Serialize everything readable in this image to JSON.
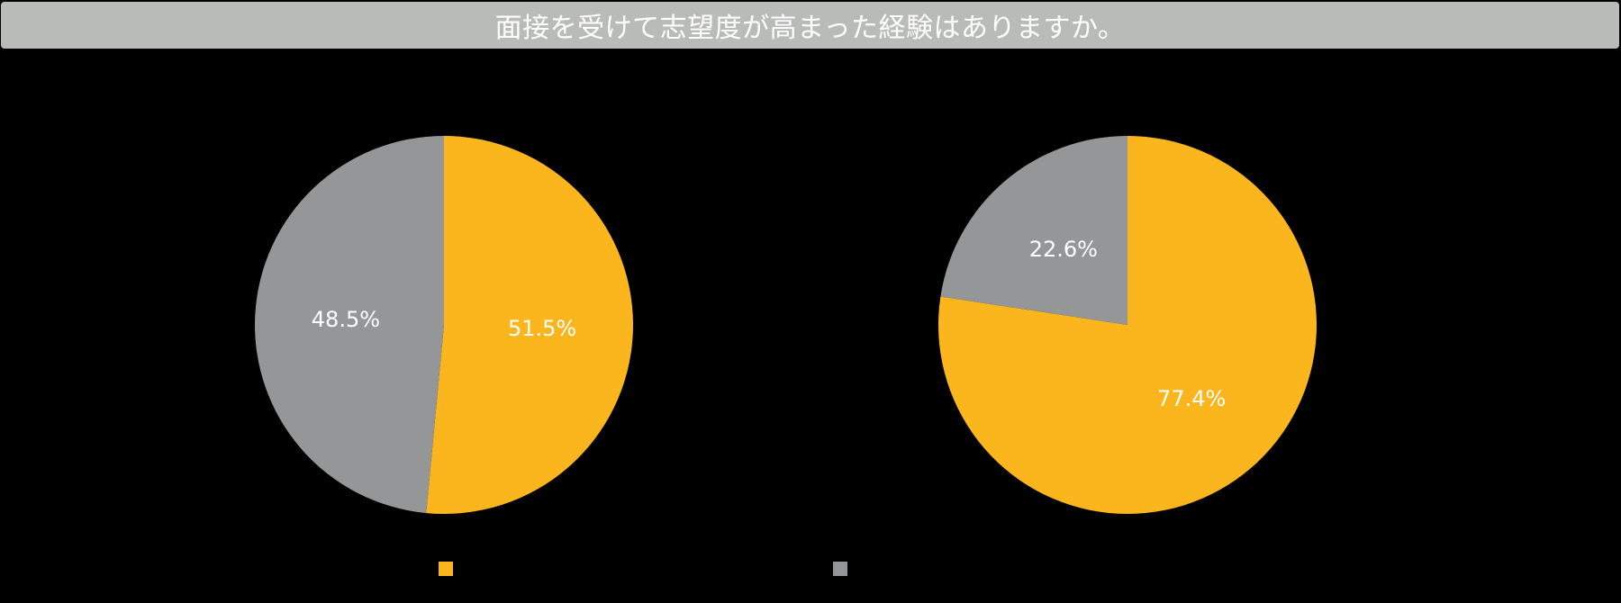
{
  "title": "面接を受けて志望度が高まった経験はありますか。",
  "colors": {
    "title_bar": "#b9bbb8",
    "background": "#000000",
    "label_text": "#ffffff"
  },
  "chart_data": [
    {
      "type": "pie",
      "start_angle": "12 o'clock",
      "direction": "clockwise",
      "slices": [
        {
          "value": 51.5,
          "label": "51.5%",
          "color": "#fbb51d"
        },
        {
          "value": 48.5,
          "label": "48.5%",
          "color": "#959697"
        }
      ]
    },
    {
      "type": "pie",
      "start_angle": "12 o'clock",
      "direction": "clockwise",
      "slices": [
        {
          "value": 77.4,
          "label": "77.4%",
          "color": "#fbb51d"
        },
        {
          "value": 22.6,
          "label": "22.6%",
          "color": "#959697"
        }
      ]
    }
  ],
  "legend": [
    {
      "color": "#fbb51d"
    },
    {
      "color": "#959697"
    }
  ]
}
